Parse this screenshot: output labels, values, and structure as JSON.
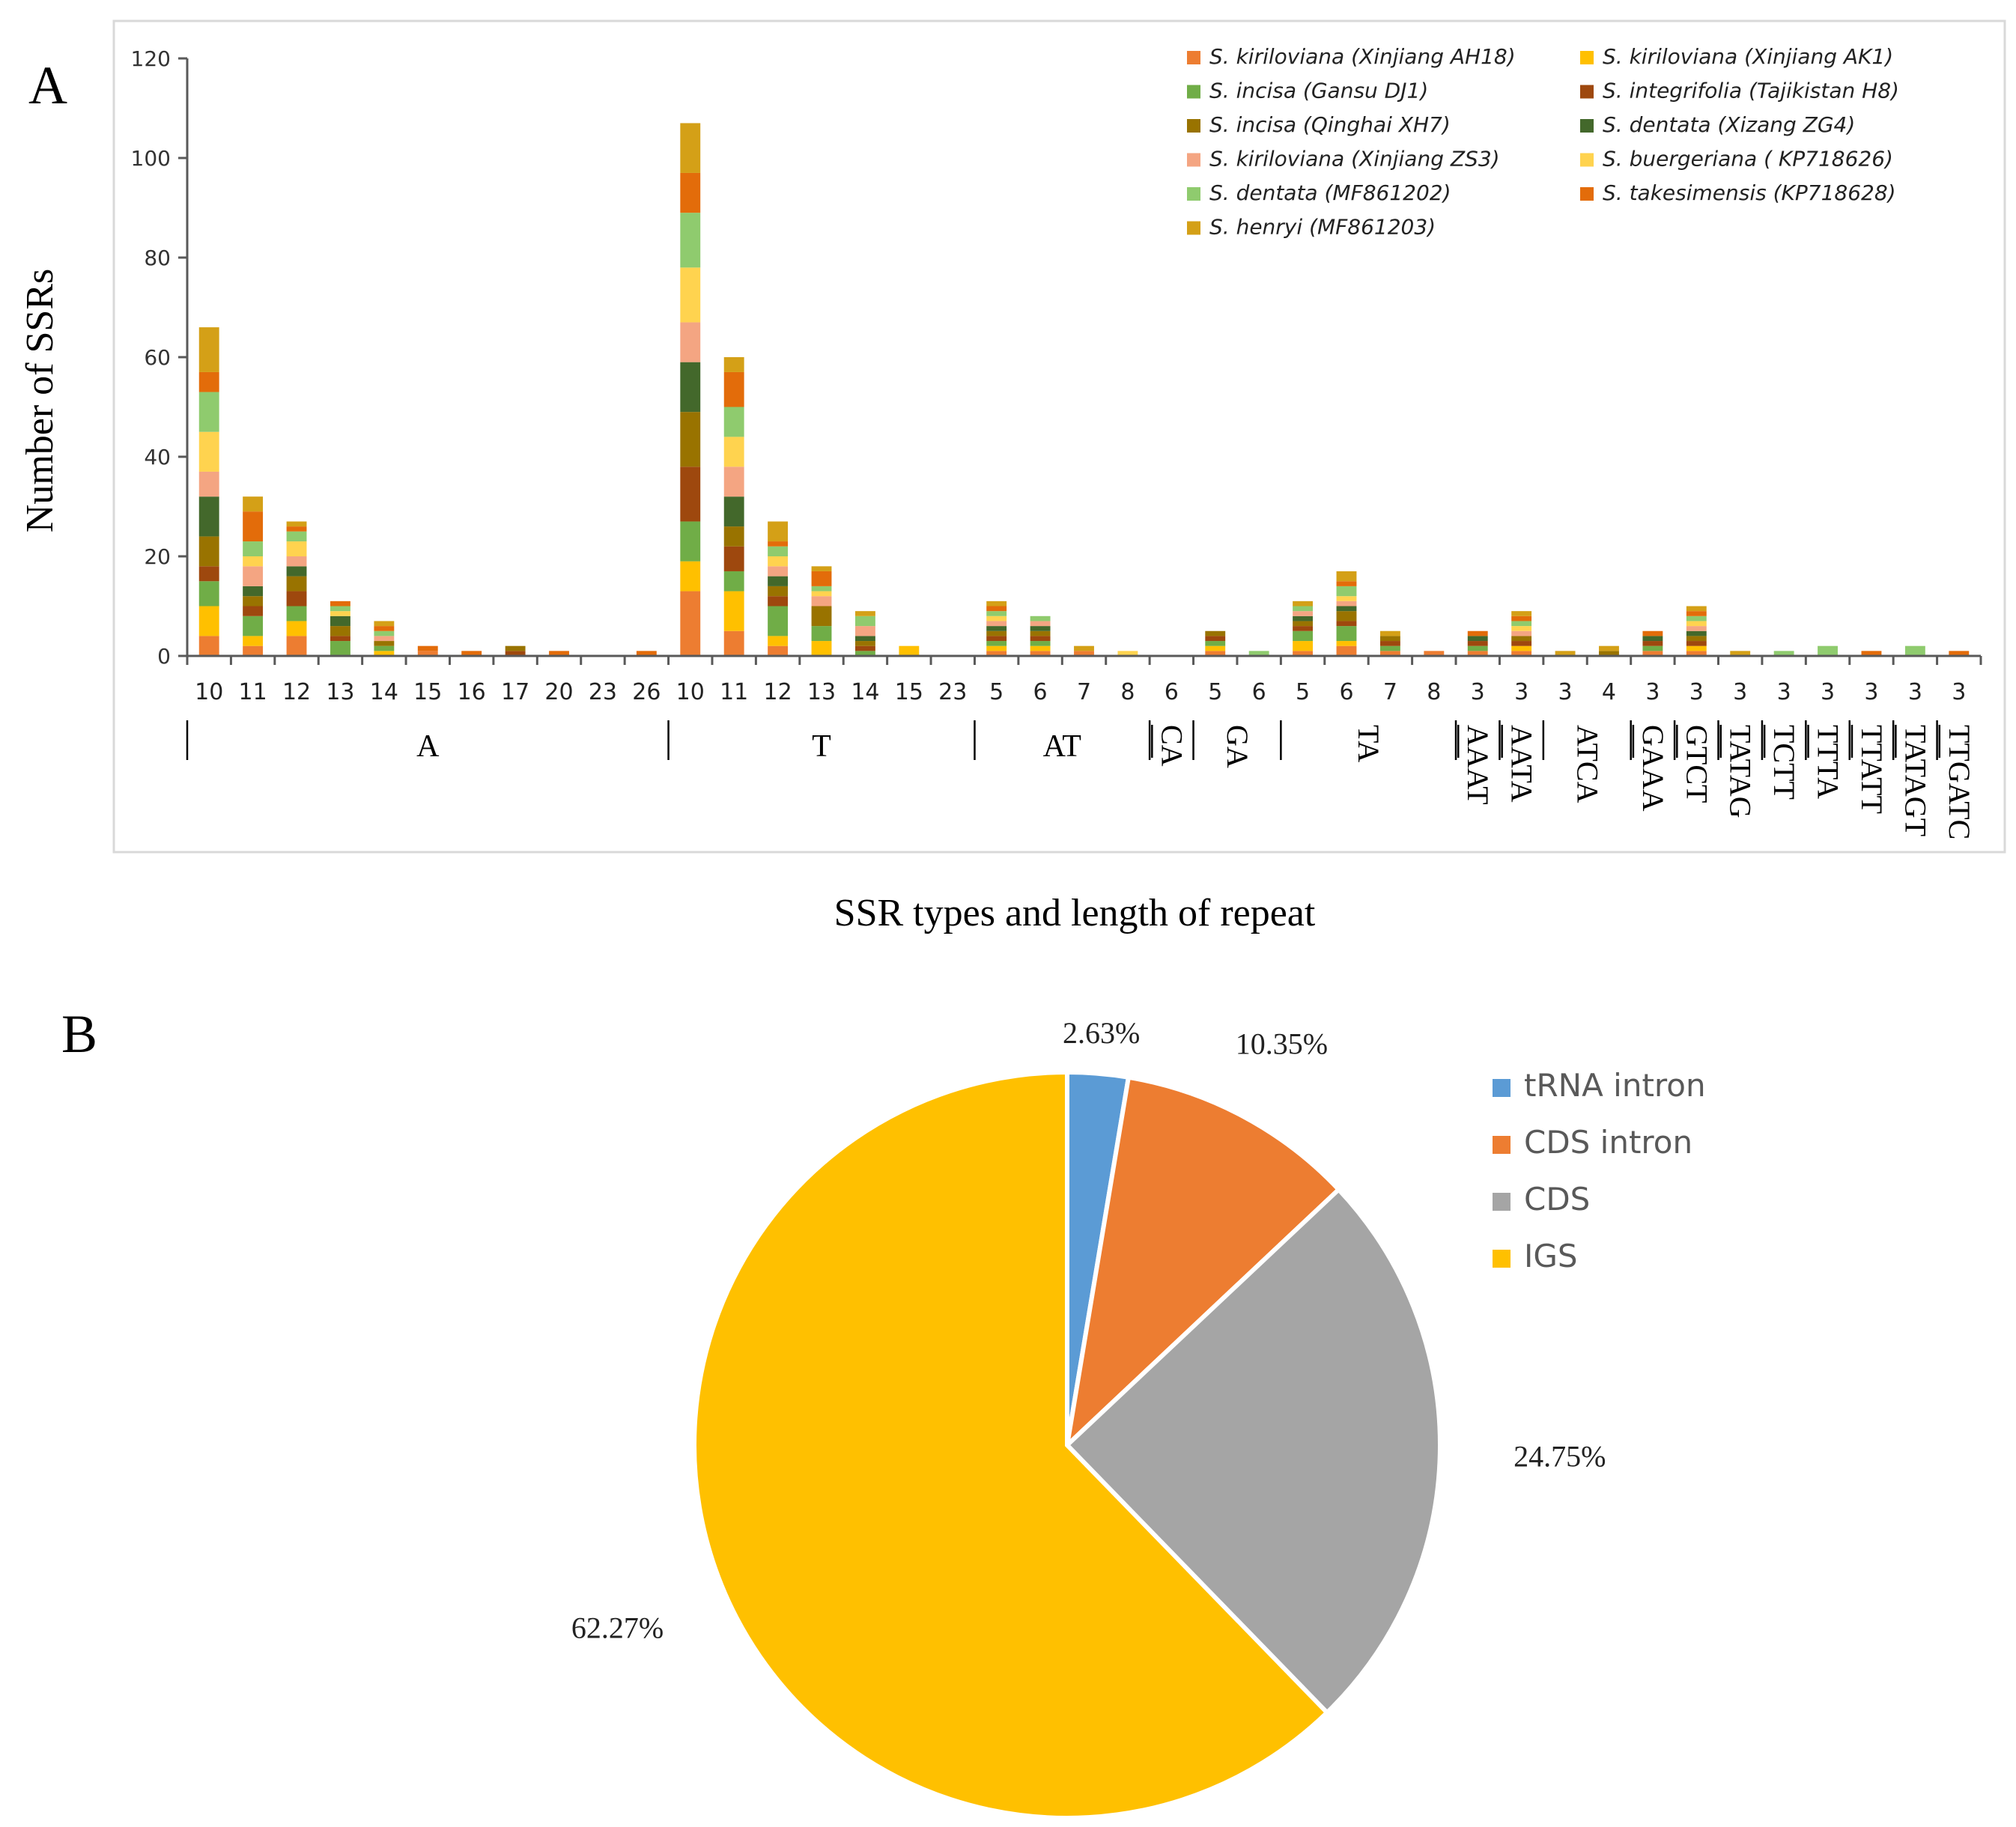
{
  "chart_data": [
    {
      "panel": "A",
      "type": "bar",
      "stacked": true,
      "xlabel": "SSR types and length of repeat",
      "ylabel": "Number of SSRs",
      "ylim": [
        0,
        120
      ],
      "yticks": [
        0,
        20,
        40,
        60,
        80,
        100,
        120
      ],
      "legend_position": "top-right",
      "categories": [
        "10",
        "11",
        "12",
        "13",
        "14",
        "15",
        "16",
        "17",
        "20",
        "23",
        "26",
        "10",
        "11",
        "12",
        "13",
        "14",
        "15",
        "23",
        "5",
        "6",
        "7",
        "8",
        "6",
        "5",
        "6",
        "5",
        "6",
        "7",
        "8",
        "3",
        "3",
        "3",
        "4",
        "3",
        "3",
        "3",
        "3",
        "3",
        "3",
        "3",
        "3"
      ],
      "groups": [
        {
          "label": "A",
          "start": 0,
          "end": 10,
          "overline": false,
          "vertical": false
        },
        {
          "label": "T",
          "start": 11,
          "end": 17,
          "overline": false,
          "vertical": false
        },
        {
          "label": "AT",
          "start": 18,
          "end": 21,
          "overline": false,
          "vertical": false
        },
        {
          "label": "CA",
          "start": 22,
          "end": 22,
          "overline": true,
          "vertical": true
        },
        {
          "label": "GA",
          "start": 23,
          "end": 24,
          "overline": false,
          "vertical": true
        },
        {
          "label": "TA",
          "start": 25,
          "end": 28,
          "overline": false,
          "vertical": true
        },
        {
          "label": "AAAT",
          "start": 29,
          "end": 29,
          "overline": true,
          "vertical": true
        },
        {
          "label": "AATA",
          "start": 30,
          "end": 30,
          "overline": true,
          "vertical": true
        },
        {
          "label": "ATCA",
          "start": 31,
          "end": 32,
          "overline": false,
          "vertical": true
        },
        {
          "label": "GAAA",
          "start": 33,
          "end": 33,
          "overline": true,
          "vertical": true
        },
        {
          "label": "GTCT",
          "start": 34,
          "end": 34,
          "overline": true,
          "vertical": true
        },
        {
          "label": "TATAG",
          "start": 35,
          "end": 35,
          "overline": true,
          "vertical": true
        },
        {
          "label": "TCTT",
          "start": 36,
          "end": 36,
          "overline": true,
          "vertical": true
        },
        {
          "label": "TTTA",
          "start": 37,
          "end": 37,
          "overline": true,
          "vertical": true
        },
        {
          "label": "TTATT",
          "start": 38,
          "end": 38,
          "overline": true,
          "vertical": true
        },
        {
          "label": "TATAGT",
          "start": 39,
          "end": 39,
          "overline": true,
          "vertical": true
        },
        {
          "label": "TTGATC",
          "start": 40,
          "end": 40,
          "overline": true,
          "vertical": true
        }
      ],
      "series": [
        {
          "name": "S. kiriloviana",
          "detail": "(Xinjiang AH18)",
          "color": "#ED7D31",
          "values": [
            4,
            2,
            4,
            0,
            0,
            1,
            0,
            0,
            0,
            0,
            0,
            13,
            5,
            2,
            0,
            0,
            0,
            0,
            1,
            1,
            1,
            0,
            0,
            1,
            0,
            1,
            2,
            1,
            1,
            1,
            1,
            0,
            0,
            1,
            1,
            0,
            0,
            0,
            0,
            0,
            0
          ]
        },
        {
          "name": "S. kiriloviana",
          "detail": "(Xinjiang AK1)",
          "color": "#FFC000",
          "values": [
            6,
            2,
            3,
            0,
            1,
            0,
            0,
            0,
            0,
            0,
            0,
            6,
            8,
            2,
            3,
            0,
            2,
            0,
            1,
            1,
            0,
            0,
            0,
            1,
            0,
            2,
            1,
            0,
            0,
            0,
            1,
            0,
            0,
            0,
            1,
            0,
            0,
            0,
            0,
            0,
            0
          ]
        },
        {
          "name": "S. incisa",
          "detail": "(Gansu DJ1)",
          "color": "#70AD47",
          "values": [
            5,
            4,
            3,
            3,
            1,
            0,
            0,
            0,
            0,
            0,
            0,
            8,
            4,
            6,
            3,
            1,
            0,
            0,
            1,
            1,
            0,
            0,
            0,
            1,
            0,
            2,
            3,
            1,
            0,
            1,
            0,
            0,
            0,
            1,
            0,
            0,
            0,
            0,
            0,
            0,
            0
          ]
        },
        {
          "name": "S. integrifolia",
          "detail": "(Tajikistan H8)",
          "color": "#9E480E",
          "values": [
            3,
            2,
            3,
            1,
            0,
            0,
            0,
            1,
            0,
            0,
            0,
            11,
            5,
            2,
            0,
            1,
            0,
            0,
            1,
            1,
            0,
            0,
            0,
            1,
            0,
            1,
            1,
            1,
            0,
            1,
            1,
            0,
            0,
            1,
            1,
            0,
            0,
            0,
            0,
            0,
            0
          ]
        },
        {
          "name": "S. incisa",
          "detail": "(Qinghai XH7)",
          "color": "#997300",
          "values": [
            6,
            2,
            3,
            2,
            1,
            0,
            0,
            1,
            0,
            0,
            0,
            11,
            4,
            2,
            4,
            1,
            0,
            0,
            1,
            1,
            0,
            0,
            0,
            1,
            0,
            1,
            2,
            1,
            0,
            0,
            1,
            0,
            1,
            0,
            1,
            0,
            0,
            0,
            0,
            0,
            0
          ]
        },
        {
          "name": "S. dentata",
          "detail": "(Xizang ZG4)",
          "color": "#43682B",
          "values": [
            8,
            2,
            2,
            2,
            0,
            0,
            0,
            0,
            0,
            0,
            0,
            10,
            6,
            2,
            0,
            1,
            0,
            0,
            1,
            1,
            0,
            0,
            0,
            0,
            0,
            1,
            1,
            0,
            0,
            1,
            0,
            0,
            0,
            1,
            1,
            0,
            0,
            0,
            0,
            0,
            0
          ]
        },
        {
          "name": "S. kiriloviana",
          "detail": "(Xinjiang ZS3)",
          "color": "#F4A582",
          "values": [
            5,
            4,
            2,
            0,
            1,
            0,
            0,
            0,
            0,
            0,
            0,
            8,
            6,
            2,
            2,
            2,
            0,
            0,
            1,
            1,
            0,
            0,
            0,
            0,
            0,
            1,
            1,
            0,
            0,
            0,
            1,
            0,
            0,
            0,
            1,
            0,
            0,
            0,
            0,
            0,
            0
          ]
        },
        {
          "name": "S. buergeriana",
          "detail": "( KP718626)",
          "color": "#FFD34F",
          "values": [
            8,
            2,
            3,
            1,
            0,
            0,
            0,
            0,
            0,
            0,
            0,
            11,
            6,
            2,
            1,
            0,
            0,
            0,
            1,
            0,
            0,
            1,
            0,
            0,
            0,
            0,
            1,
            0,
            0,
            0,
            1,
            0,
            0,
            0,
            1,
            0,
            0,
            0,
            0,
            0,
            0
          ]
        },
        {
          "name": "S. dentata",
          "detail": "(MF861202)",
          "color": "#8FCB6E",
          "values": [
            8,
            3,
            2,
            1,
            1,
            0,
            0,
            0,
            0,
            0,
            0,
            11,
            6,
            2,
            1,
            2,
            0,
            0,
            1,
            1,
            0,
            0,
            0,
            0,
            1,
            1,
            2,
            0,
            0,
            0,
            1,
            0,
            0,
            0,
            1,
            0,
            1,
            2,
            0,
            2,
            0
          ]
        },
        {
          "name": "S. takesimensis",
          "detail": "(KP718628)",
          "color": "#E36C0A",
          "values": [
            4,
            6,
            1,
            1,
            1,
            1,
            1,
            0,
            1,
            0,
            1,
            8,
            7,
            1,
            3,
            0,
            0,
            0,
            1,
            0,
            0,
            0,
            0,
            0,
            0,
            0,
            1,
            0,
            0,
            1,
            1,
            0,
            0,
            1,
            1,
            0,
            0,
            0,
            1,
            0,
            1
          ]
        },
        {
          "name": "S. henryi",
          "detail": "(MF861203)",
          "color": "#D4A017",
          "values": [
            9,
            3,
            1,
            0,
            1,
            0,
            0,
            0,
            0,
            0,
            0,
            10,
            3,
            4,
            1,
            1,
            0,
            0,
            1,
            0,
            1,
            0,
            0,
            0,
            0,
            1,
            2,
            1,
            0,
            0,
            1,
            1,
            1,
            0,
            1,
            1,
            0,
            0,
            0,
            0,
            0
          ]
        }
      ]
    },
    {
      "panel": "B",
      "type": "pie",
      "title": "",
      "slices": [
        {
          "label": "tRNA intron",
          "value": 2.63,
          "text": "2.63%",
          "color": "#5B9BD5"
        },
        {
          "label": "CDS intron",
          "value": 10.35,
          "text": "10.35%",
          "color": "#ED7D31"
        },
        {
          "label": "CDS",
          "value": 24.75,
          "text": "24.75%",
          "color": "#A5A5A5"
        },
        {
          "label": "IGS",
          "value": 62.27,
          "text": "62.27%",
          "color": "#FFC000"
        }
      ]
    }
  ],
  "panel_labels": {
    "a": "A",
    "b": "B"
  }
}
